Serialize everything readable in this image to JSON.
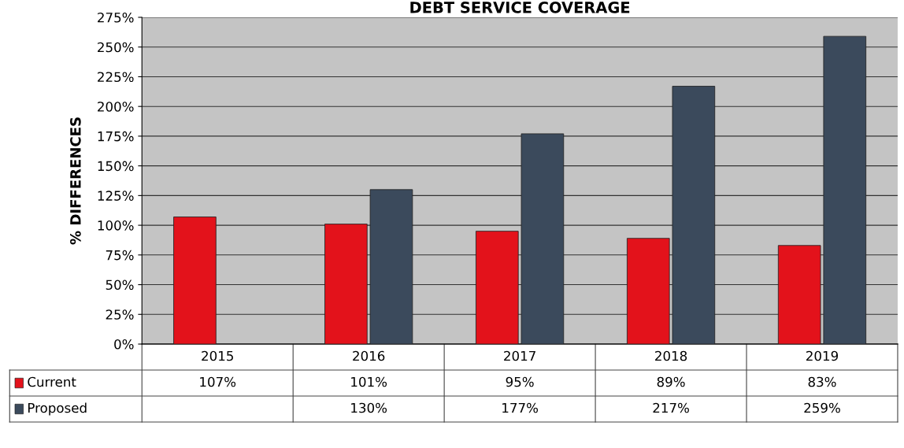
{
  "chart_data": {
    "type": "bar",
    "title": "DEBT SERVICE COVERAGE",
    "ylabel": "% DIFFERENCES",
    "categories": [
      "2015",
      "2016",
      "2017",
      "2018",
      "2019"
    ],
    "series": [
      {
        "name": "Current",
        "color": "#e3121b",
        "values": [
          107,
          101,
          95,
          89,
          83
        ],
        "value_labels": [
          "107%",
          "101%",
          "95%",
          "89%",
          "83%"
        ]
      },
      {
        "name": "Proposed",
        "color": "#3b4a5c",
        "values": [
          null,
          130,
          177,
          217,
          259
        ],
        "value_labels": [
          null,
          "130%",
          "177%",
          "217%",
          "259%"
        ]
      }
    ],
    "ylim": [
      0,
      275
    ],
    "yticks": [
      {
        "value": 0,
        "label": "0%"
      },
      {
        "value": 25,
        "label": "25%"
      },
      {
        "value": 50,
        "label": "50%"
      },
      {
        "value": 75,
        "label": "75%"
      },
      {
        "value": 100,
        "label": "100%"
      },
      {
        "value": 125,
        "label": "125%"
      },
      {
        "value": 150,
        "label": "150%"
      },
      {
        "value": 175,
        "label": "175%"
      },
      {
        "value": 200,
        "label": "200%"
      },
      {
        "value": 225,
        "label": "225%"
      },
      {
        "value": 250,
        "label": "250%"
      },
      {
        "value": 275,
        "label": "275%"
      }
    ],
    "grid": "y",
    "legend": "bottom"
  }
}
